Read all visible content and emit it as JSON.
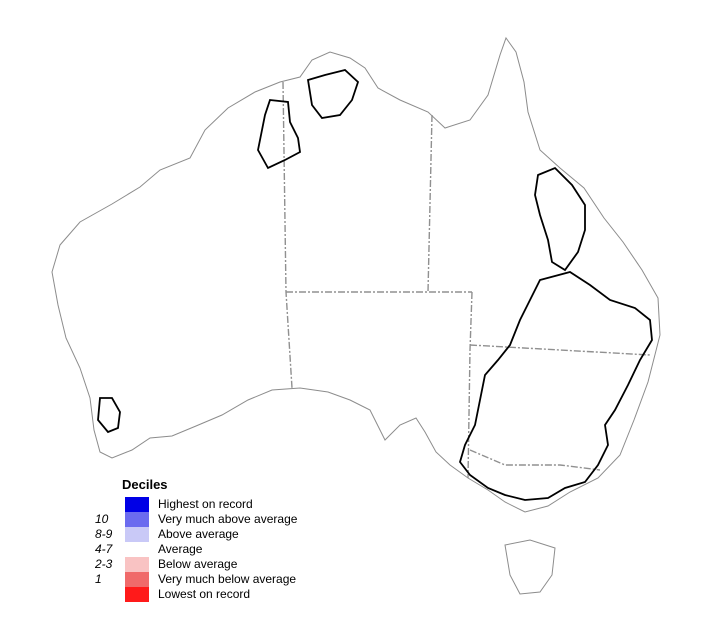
{
  "map": {
    "land_color": "#ffffff",
    "coast_color": "#8c8c8c",
    "state_border_color": "#909090",
    "basin_outline_color": "#000000"
  },
  "legend": {
    "title": "Deciles",
    "items": [
      {
        "range": "",
        "label": "Highest on record",
        "color": "#0000e6"
      },
      {
        "range": "10",
        "label": "Very much above average",
        "color": "#6b6bef"
      },
      {
        "range": "8-9",
        "label": "Above average",
        "color": "#c9c9f7"
      },
      {
        "range": "4-7",
        "label": "Average",
        "color": "#ffffff"
      },
      {
        "range": "2-3",
        "label": "Below average",
        "color": "#f9c3c3"
      },
      {
        "range": "1",
        "label": "Very much below average",
        "color": "#f06a6a"
      },
      {
        "range": "",
        "label": "Lowest on record",
        "color": "#ff1a1a"
      }
    ]
  }
}
